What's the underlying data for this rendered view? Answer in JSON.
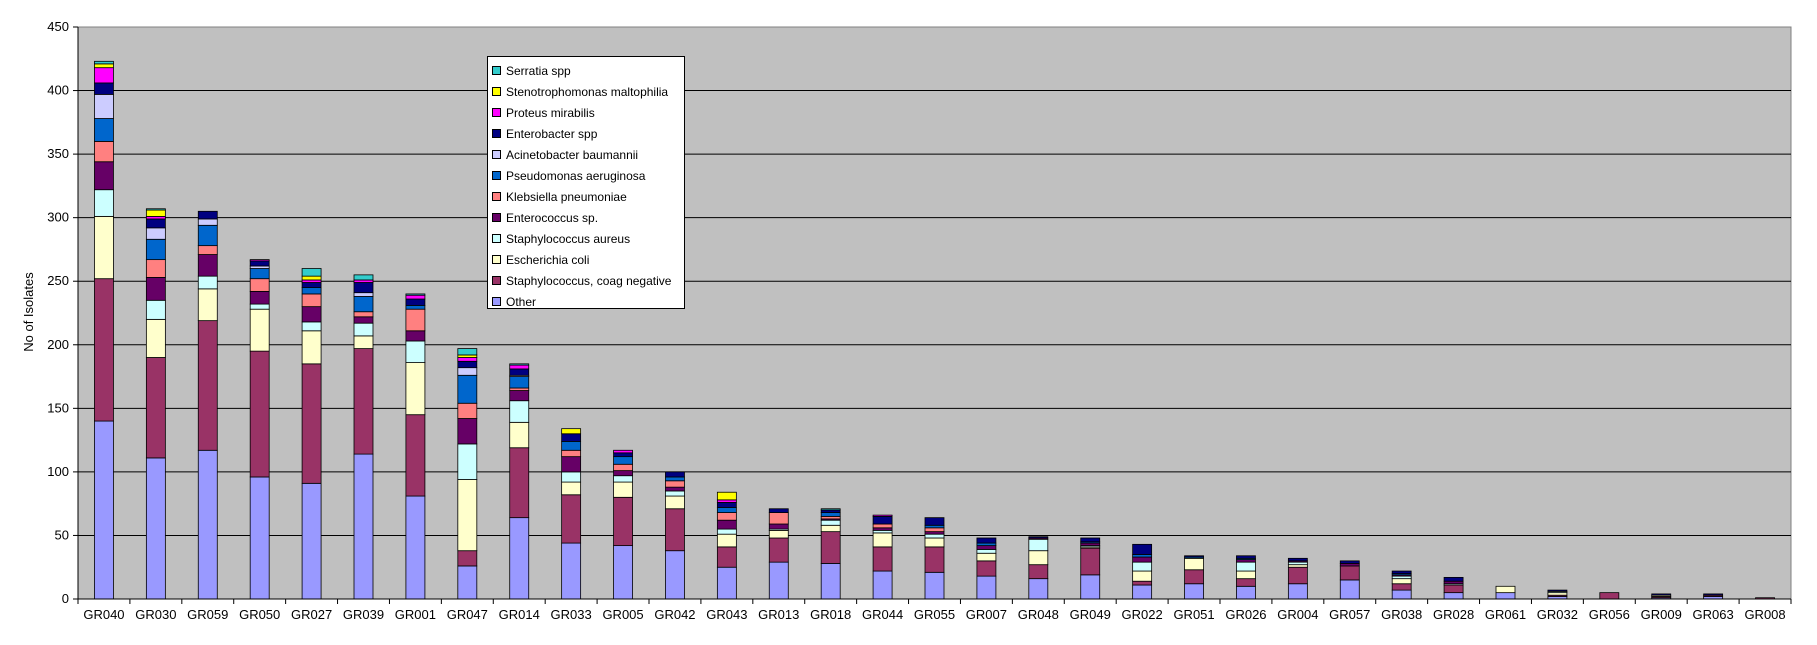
{
  "chart_data": {
    "type": "bar",
    "stacked": true,
    "title": "",
    "xlabel": "",
    "ylabel": "No of Isolates",
    "ylim": [
      0,
      450
    ],
    "yticks": [
      0,
      50,
      100,
      150,
      200,
      250,
      300,
      350,
      400,
      450
    ],
    "grid": true,
    "legend_position": "top-left inside plot",
    "plot_background": "#c0c0c0",
    "categories": [
      "GR040",
      "GR030",
      "GR059",
      "GR050",
      "GR027",
      "GR039",
      "GR001",
      "GR047",
      "GR014",
      "GR033",
      "GR005",
      "GR042",
      "GR043",
      "GR013",
      "GR018",
      "GR044",
      "GR055",
      "GR007",
      "GR048",
      "GR049",
      "GR022",
      "GR051",
      "GR026",
      "GR004",
      "GR057",
      "GR038",
      "GR028",
      "GR061",
      "GR032",
      "GR056",
      "GR009",
      "GR063",
      "GR008"
    ],
    "series": [
      {
        "name": "Other",
        "color": "#9999ff",
        "values": [
          140,
          111,
          117,
          96,
          91,
          114,
          81,
          26,
          64,
          44,
          42,
          38,
          25,
          29,
          28,
          22,
          21,
          18,
          16,
          19,
          11,
          12,
          10,
          12,
          15,
          7,
          5,
          5,
          2,
          0,
          1,
          2,
          0
        ]
      },
      {
        "name": "Staphylococcus, coag negative",
        "color": "#993366",
        "values": [
          112,
          79,
          102,
          99,
          94,
          83,
          64,
          12,
          55,
          38,
          38,
          33,
          16,
          19,
          25,
          19,
          20,
          12,
          11,
          21,
          3,
          11,
          6,
          13,
          11,
          5,
          6,
          0,
          1,
          5,
          1,
          1,
          1
        ]
      },
      {
        "name": "Escherichia coli",
        "color": "#ffffcc",
        "values": [
          49,
          30,
          25,
          33,
          26,
          10,
          41,
          56,
          20,
          10,
          12,
          10,
          10,
          6,
          5,
          11,
          7,
          6,
          11,
          1,
          8,
          9,
          6,
          2,
          0,
          4,
          0,
          5,
          2,
          0,
          1,
          0,
          0
        ]
      },
      {
        "name": "Staphylococcus aureus",
        "color": "#ccffff",
        "values": [
          21,
          15,
          10,
          4,
          7,
          10,
          17,
          28,
          17,
          8,
          5,
          4,
          4,
          1,
          4,
          2,
          3,
          3,
          9,
          1,
          7,
          0,
          7,
          2,
          0,
          2,
          1,
          0,
          1,
          0,
          0,
          0,
          0
        ]
      },
      {
        "name": "Enterococcus sp.",
        "color": "#660066",
        "values": [
          22,
          18,
          17,
          10,
          12,
          5,
          8,
          20,
          8,
          12,
          4,
          3,
          7,
          4,
          1,
          2,
          2,
          3,
          1,
          2,
          4,
          0,
          2,
          1,
          2,
          1,
          2,
          0,
          0,
          0,
          0,
          0,
          0
        ]
      },
      {
        "name": "Klebsiella pneumoniae",
        "color": "#ff8080",
        "values": [
          16,
          14,
          7,
          10,
          10,
          4,
          17,
          12,
          2,
          5,
          5,
          5,
          6,
          9,
          2,
          3,
          3,
          0,
          0,
          0,
          0,
          0,
          0,
          0,
          0,
          0,
          0,
          0,
          0,
          0,
          0,
          0,
          0
        ]
      },
      {
        "name": "Pseudomonas aeruginosa",
        "color": "#0066cc",
        "values": [
          18,
          16,
          16,
          8,
          5,
          12,
          3,
          22,
          9,
          7,
          6,
          3,
          4,
          0,
          3,
          0,
          2,
          2,
          0,
          1,
          2,
          1,
          1,
          0,
          0,
          1,
          0,
          0,
          0,
          0,
          0,
          0,
          0
        ]
      },
      {
        "name": "Acinetobacter baumannii",
        "color": "#ccccff",
        "values": [
          19,
          9,
          5,
          2,
          0,
          3,
          0,
          6,
          1,
          0,
          0,
          0,
          0,
          0,
          0,
          0,
          0,
          0,
          0,
          0,
          0,
          0,
          0,
          0,
          0,
          0,
          0,
          0,
          0,
          0,
          0,
          0,
          0
        ]
      },
      {
        "name": "Enterobacter spp",
        "color": "#000080",
        "values": [
          9,
          7,
          6,
          4,
          4,
          8,
          5,
          5,
          5,
          6,
          3,
          4,
          4,
          3,
          2,
          6,
          6,
          4,
          1,
          3,
          8,
          1,
          2,
          2,
          2,
          2,
          3,
          0,
          1,
          0,
          1,
          1,
          0
        ]
      },
      {
        "name": "Proteus mirabilis",
        "color": "#ff00ff",
        "values": [
          12,
          2,
          0,
          1,
          2,
          2,
          3,
          3,
          3,
          0,
          2,
          0,
          2,
          0,
          0,
          1,
          0,
          0,
          0,
          0,
          0,
          0,
          0,
          0,
          0,
          0,
          0,
          0,
          0,
          0,
          0,
          0,
          0
        ]
      },
      {
        "name": "Stenotrophomonas maltophilia",
        "color": "#ffff00",
        "values": [
          3,
          5,
          0,
          0,
          3,
          0,
          0,
          2,
          0,
          4,
          0,
          0,
          6,
          0,
          0,
          0,
          0,
          0,
          0,
          0,
          0,
          0,
          0,
          0,
          0,
          0,
          0,
          0,
          0,
          0,
          0,
          0,
          0
        ]
      },
      {
        "name": "Serratia spp",
        "color": "#33cccc",
        "values": [
          2,
          1,
          0,
          0,
          6,
          4,
          1,
          5,
          1,
          0,
          0,
          0,
          0,
          0,
          1,
          0,
          0,
          0,
          0,
          0,
          0,
          0,
          0,
          0,
          0,
          0,
          0,
          0,
          0,
          0,
          0,
          0,
          0
        ]
      }
    ]
  }
}
